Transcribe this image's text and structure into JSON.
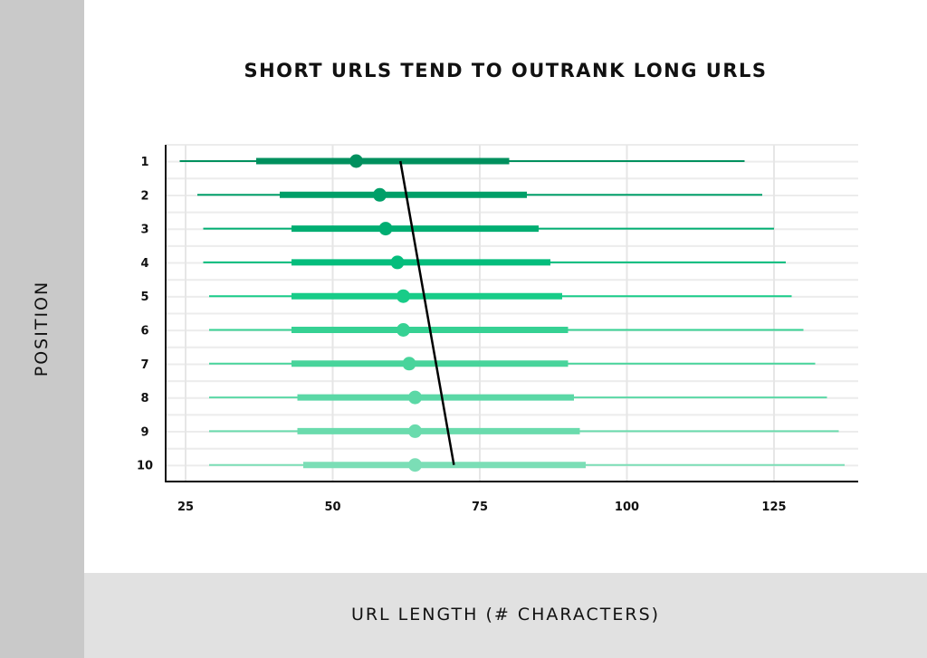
{
  "chart_data": {
    "type": "box",
    "title": "SHORT URLS TEND TO OUTRANK LONG URLS",
    "xlabel": "URL LENGTH (# CHARACTERS)",
    "ylabel": "POSITION",
    "xlim": [
      22,
      139
    ],
    "xticks": [
      "25",
      "50",
      "75",
      "100",
      "125"
    ],
    "categories": [
      "1",
      "2",
      "3",
      "4",
      "5",
      "6",
      "7",
      "8",
      "9",
      "10"
    ],
    "whisker_low": [
      24,
      27,
      28,
      28,
      29,
      29,
      29,
      29,
      29,
      29
    ],
    "box_low": [
      37,
      41,
      43,
      43,
      43,
      43,
      43,
      44,
      44,
      45
    ],
    "median": [
      54,
      58,
      59,
      61,
      62,
      62,
      63,
      64,
      64,
      64
    ],
    "box_high": [
      80,
      83,
      85,
      87,
      89,
      90,
      90,
      91,
      92,
      93
    ],
    "whisker_high": [
      120,
      123,
      125,
      127,
      128,
      130,
      132,
      134,
      136,
      137
    ],
    "trend_line": {
      "from": [
        61.5,
        "1"
      ],
      "to": [
        70.6,
        "10"
      ],
      "color": "#000000"
    },
    "colors": [
      "#00905e",
      "#009f68",
      "#00ae72",
      "#04bd7c",
      "#18cc88",
      "#36d193",
      "#48d49b",
      "#5bd8a6",
      "#6adbad",
      "#7bdeb6"
    ],
    "grid": true
  }
}
